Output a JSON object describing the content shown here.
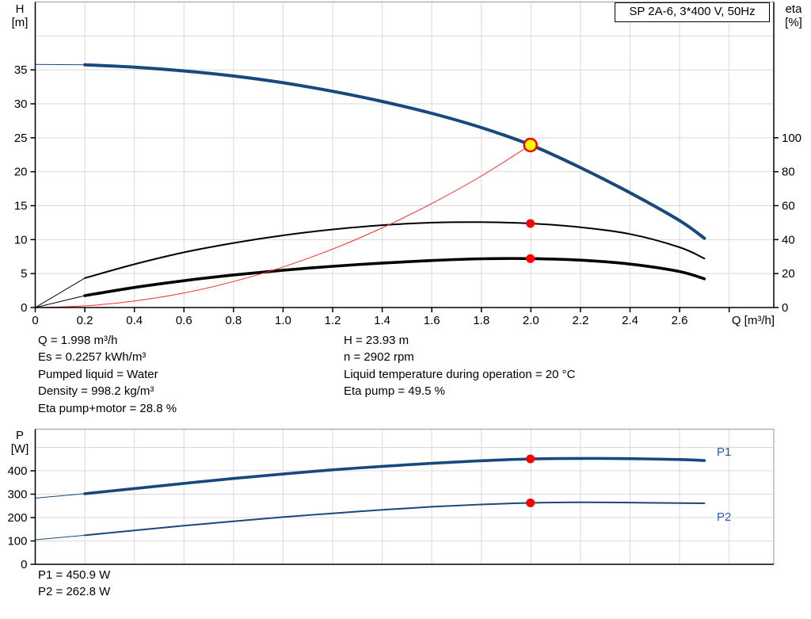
{
  "top_chart": {
    "title_box": "SP 2A-6, 3*400 V, 50Hz",
    "left_axis_title_line1": "H",
    "left_axis_title_line2": "[m]",
    "right_axis_title_line1": "eta",
    "right_axis_title_line2": "[%]",
    "x_axis_title": "Q [m³/h]"
  },
  "operating_point_text": {
    "left_column": [
      "Q = 1.998 m³/h",
      "Es = 0.2257 kWh/m³",
      "Pumped liquid = Water",
      "Density = 998.2 kg/m³",
      "Eta pump+motor = 28.8 %"
    ],
    "right_column": [
      "H = 23.93 m",
      "n = 2902 rpm",
      "Liquid temperature during operation = 20 °C",
      "Eta pump = 49.5 %"
    ]
  },
  "bottom_chart": {
    "left_axis_title_line1": "P",
    "left_axis_title_line2": "[W]",
    "p1_curve_label": "P1",
    "p2_curve_label": "P2"
  },
  "footer_text": {
    "lines": [
      "P1 = 450.9 W",
      "P2 = 262.8 W"
    ]
  },
  "colors": {
    "curve_navy": "#17497D",
    "curve_black": "#000000",
    "system_curve_red": "#FF2A2A",
    "marker_red": "#FF0000",
    "duty_point_yellow": "#FFFF00",
    "p_label_blue": "#2A5CAA",
    "grid": "#D9D9D9",
    "border_gray": "#A6A6A6",
    "axis_black": "#000000"
  },
  "chart_data": [
    {
      "type": "line",
      "title": "SP 2A-6, 3*400 V, 50Hz",
      "xlabel": "Q [m³/h]",
      "ylabel_left": "H [m]",
      "ylabel_right": "eta [%]",
      "xlim": [
        0,
        2.98
      ],
      "ylim_left": [
        0,
        45
      ],
      "ylim_right": [
        0,
        180
      ],
      "grid": true,
      "legend_position": "none",
      "xticks": [
        0,
        0.2,
        0.4,
        0.6,
        0.8,
        1.0,
        1.2,
        1.4,
        1.6,
        1.8,
        2.0,
        2.2,
        2.4,
        2.6
      ],
      "xtick_labels": [
        "0",
        "0.2",
        "0.4",
        "0.6",
        "0.8",
        "1.0",
        "1.2",
        "1.4",
        "1.6",
        "1.8",
        "2.0",
        "2.2",
        "2.4",
        "2.6"
      ],
      "xtick_marks": [
        0,
        0.2,
        0.4,
        0.6,
        0.8,
        1.0,
        1.2,
        1.4,
        1.6,
        1.8,
        2.0,
        2.2,
        2.4,
        2.6,
        2.8
      ],
      "xgrid": [
        0.2,
        0.4,
        0.6,
        0.8,
        1.0,
        1.2,
        1.4,
        1.6,
        1.8,
        2.0,
        2.2,
        2.4,
        2.6,
        2.8
      ],
      "yticks_left": [
        0,
        5,
        10,
        15,
        20,
        25,
        30,
        35
      ],
      "ytick_labels_left": [
        "0",
        "5",
        "10",
        "15",
        "20",
        "25",
        "30",
        "35"
      ],
      "ygrid_left": [
        5,
        10,
        15,
        20,
        25,
        30,
        35,
        40
      ],
      "yticks_right": [
        0,
        20,
        40,
        60,
        80,
        100
      ],
      "ytick_labels_right": [
        "0",
        "20",
        "40",
        "60",
        "80",
        "100"
      ],
      "series": [
        {
          "name": "head-curve",
          "legend": "H",
          "axis": "left",
          "color": "#17497D",
          "width": 4,
          "thin_until": 0.2,
          "points": [
            [
              0,
              35.8
            ],
            [
              0.2,
              35.75
            ],
            [
              0.4,
              35.4
            ],
            [
              0.6,
              34.85
            ],
            [
              0.8,
              34.1
            ],
            [
              1.0,
              33.1
            ],
            [
              1.2,
              31.85
            ],
            [
              1.4,
              30.35
            ],
            [
              1.6,
              28.6
            ],
            [
              1.8,
              26.5
            ],
            [
              2.0,
              23.93
            ],
            [
              2.2,
              20.6
            ],
            [
              2.4,
              16.9
            ],
            [
              2.6,
              12.8
            ],
            [
              2.7,
              10.2
            ]
          ]
        },
        {
          "name": "eta-pump-curve",
          "legend": "Eta pump",
          "axis": "right",
          "color": "#000000",
          "width": 2,
          "thin_until": 0.2,
          "points": [
            [
              0,
              0
            ],
            [
              0.2,
              17.3
            ],
            [
              0.4,
              25.5
            ],
            [
              0.6,
              32.5
            ],
            [
              0.8,
              38.0
            ],
            [
              1.0,
              42.5
            ],
            [
              1.2,
              46.0
            ],
            [
              1.4,
              48.5
            ],
            [
              1.6,
              50.0
            ],
            [
              1.8,
              50.3
            ],
            [
              2.0,
              49.5
            ],
            [
              2.2,
              47.3
            ],
            [
              2.4,
              43.3
            ],
            [
              2.6,
              35.5
            ],
            [
              2.7,
              28.9
            ]
          ]
        },
        {
          "name": "eta-pump-motor-curve",
          "legend": "Eta pump+motor",
          "axis": "right",
          "color": "#000000",
          "width": 3.6,
          "thin_until": 0.2,
          "points": [
            [
              0,
              0
            ],
            [
              0.2,
              7.0
            ],
            [
              0.4,
              11.8
            ],
            [
              0.6,
              15.8
            ],
            [
              0.8,
              19.2
            ],
            [
              1.0,
              22.0
            ],
            [
              1.2,
              24.3
            ],
            [
              1.4,
              26.2
            ],
            [
              1.6,
              27.7
            ],
            [
              1.8,
              28.7
            ],
            [
              2.0,
              28.8
            ],
            [
              2.2,
              27.9
            ],
            [
              2.4,
              25.6
            ],
            [
              2.6,
              21.2
            ],
            [
              2.7,
              16.9
            ]
          ]
        },
        {
          "name": "system-curve",
          "legend": "System curve",
          "axis": "left",
          "color": "#FF2A2A",
          "width": 1,
          "thin_until": 0,
          "points": [
            [
              0,
              0
            ],
            [
              0.2,
              0.24
            ],
            [
              0.4,
              0.96
            ],
            [
              0.6,
              2.15
            ],
            [
              0.8,
              3.83
            ],
            [
              1.0,
              5.98
            ],
            [
              1.2,
              8.61
            ],
            [
              1.4,
              11.73
            ],
            [
              1.6,
              15.32
            ],
            [
              1.8,
              19.38
            ],
            [
              1.998,
              23.93
            ]
          ]
        }
      ],
      "markers": [
        {
          "name": "duty-point-marker",
          "axis": "left",
          "x": 1.998,
          "y": 23.93,
          "r": 8,
          "fill": "#FFFF00",
          "stroke": "#FF0000",
          "stroke_width": 2.5
        },
        {
          "name": "eta-pump-point",
          "axis": "right",
          "x": 1.998,
          "y": 49.5,
          "r": 5.5,
          "fill": "#FF0000"
        },
        {
          "name": "eta-pump-motor-point",
          "axis": "right",
          "x": 1.998,
          "y": 28.8,
          "r": 5.5,
          "fill": "#FF0000"
        }
      ]
    },
    {
      "type": "line",
      "title": "",
      "xlabel": "",
      "ylabel_left": "P [W]",
      "xlim": [
        0,
        2.98
      ],
      "ylim_left": [
        0,
        578
      ],
      "grid": true,
      "legend_position": "right-inside",
      "xgrid": [
        0.2,
        0.4,
        0.6,
        0.8,
        1.0,
        1.2,
        1.4,
        1.6,
        1.8,
        2.0,
        2.2,
        2.4,
        2.6,
        2.8
      ],
      "yticks_left": [
        0,
        100,
        200,
        300,
        400
      ],
      "ytick_labels_left": [
        "0",
        "100",
        "200",
        "300",
        "400"
      ],
      "ygrid_left": [
        100,
        200,
        300,
        400,
        500
      ],
      "series": [
        {
          "name": "p1-curve",
          "legend": "P1",
          "axis": "left",
          "color": "#17497D",
          "width": 3.6,
          "thin_until": 0.2,
          "points": [
            [
              0,
              283
            ],
            [
              0.2,
              302
            ],
            [
              0.4,
              324
            ],
            [
              0.6,
              346
            ],
            [
              0.8,
              367
            ],
            [
              1.0,
              386
            ],
            [
              1.2,
              404
            ],
            [
              1.4,
              419
            ],
            [
              1.6,
              432
            ],
            [
              1.8,
              443
            ],
            [
              2.0,
              450.9
            ],
            [
              2.2,
              453
            ],
            [
              2.4,
              452
            ],
            [
              2.6,
              448
            ],
            [
              2.7,
              444
            ]
          ]
        },
        {
          "name": "p2-curve",
          "legend": "P2",
          "axis": "left",
          "color": "#17497D",
          "width": 2,
          "thin_until": 0.2,
          "points": [
            [
              0,
              105
            ],
            [
              0.2,
              124
            ],
            [
              0.4,
              145
            ],
            [
              0.6,
              165
            ],
            [
              0.8,
              184
            ],
            [
              1.0,
              202
            ],
            [
              1.2,
              218
            ],
            [
              1.4,
              233
            ],
            [
              1.6,
              246
            ],
            [
              1.8,
              256
            ],
            [
              2.0,
              262.8
            ],
            [
              2.2,
              265
            ],
            [
              2.4,
              264
            ],
            [
              2.6,
              262
            ],
            [
              2.7,
              261
            ]
          ]
        }
      ],
      "markers": [
        {
          "name": "p1-point",
          "axis": "left",
          "x": 1.998,
          "y": 450.9,
          "r": 5.5,
          "fill": "#FF0000"
        },
        {
          "name": "p2-point",
          "axis": "left",
          "x": 1.998,
          "y": 262.8,
          "r": 5.5,
          "fill": "#FF0000"
        }
      ]
    }
  ]
}
